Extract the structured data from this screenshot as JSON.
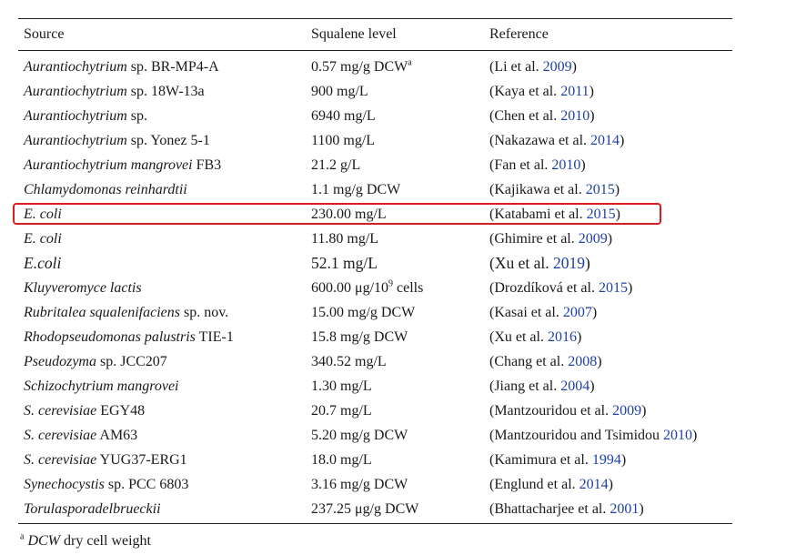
{
  "table": {
    "headers": {
      "source": "Source",
      "squalene": "Squalene level",
      "reference": "Reference"
    },
    "rows": [
      {
        "species": "Aurantiochytrium",
        "strain": " sp. BR-MP4-A",
        "level": "0.57 mg/g DCW",
        "level_sup": "a",
        "ref_text": "(Li et al. ",
        "ref_year": "2009",
        "ref_close": ")"
      },
      {
        "species": "Aurantiochytrium",
        "strain": " sp. 18W-13a",
        "level": "900 mg/L",
        "level_sup": "",
        "ref_text": "(Kaya et al. ",
        "ref_year": "2011",
        "ref_close": ")"
      },
      {
        "species": "Aurantiochytrium",
        "strain": " sp.",
        "level": "6940 mg/L",
        "level_sup": "",
        "ref_text": "(Chen et al. ",
        "ref_year": "2010",
        "ref_close": ")"
      },
      {
        "species": "Aurantiochytrium",
        "strain": " sp. Yonez 5-1",
        "level": "1100 mg/L",
        "level_sup": "",
        "ref_text": "(Nakazawa et al. ",
        "ref_year": "2014",
        "ref_close": ")"
      },
      {
        "species": "Aurantiochytrium mangrovei",
        "strain": " FB3",
        "level": "21.2 g/L",
        "level_sup": "",
        "ref_text": "(Fan et al. ",
        "ref_year": "2010",
        "ref_close": ")"
      },
      {
        "species": "Chlamydomonas reinhardtii",
        "strain": "",
        "level": "1.1 mg/g DCW",
        "level_sup": "",
        "ref_text": "(Kajikawa et al. ",
        "ref_year": "2015",
        "ref_close": ")"
      },
      {
        "species": "E. coli",
        "strain": "",
        "level": "230.00 mg/L",
        "level_sup": "",
        "ref_text": "(Katabami et al. ",
        "ref_year": "2015",
        "ref_close": ")",
        "highlighted": true
      },
      {
        "species": "E. coli",
        "strain": "",
        "level": "11.80 mg/L",
        "level_sup": "",
        "ref_text": "(Ghimire et al. ",
        "ref_year": "2009",
        "ref_close": ")"
      },
      {
        "species": "E.coli",
        "strain": "",
        "level": "52.1 mg/L",
        "level_sup": "",
        "ref_text": "(Xu et al. ",
        "ref_year": "2019",
        "ref_close": ")",
        "big": true
      },
      {
        "species": "Kluyveromyce lactis",
        "strain": "",
        "level": "600.00 μg/10",
        "level_sup": "9",
        "level_after": " cells",
        "ref_text": "(Drozdíková et al. ",
        "ref_year": "2015",
        "ref_close": ")"
      },
      {
        "species": "Rubritalea squalenifaciens",
        "strain": " sp. nov.",
        "level": "15.00 mg/g DCW",
        "level_sup": "",
        "ref_text": "(Kasai et al. ",
        "ref_year": "2007",
        "ref_close": ")"
      },
      {
        "species": "Rhodopseudomonas palustris",
        "strain": " TIE-1",
        "level": "15.8 mg/g DCW",
        "level_sup": "",
        "ref_text": "(Xu et al. ",
        "ref_year": "2016",
        "ref_close": ")"
      },
      {
        "species": "Pseudozyma",
        "strain": " sp. JCC207",
        "level": "340.52 mg/L",
        "level_sup": "",
        "ref_text": "(Chang et al. ",
        "ref_year": "2008",
        "ref_close": ")"
      },
      {
        "species": "Schizochytrium mangrovei",
        "strain": "",
        "level": "1.30 mg/L",
        "level_sup": "",
        "ref_text": "(Jiang et al. ",
        "ref_year": "2004",
        "ref_close": ")"
      },
      {
        "species": "S. cerevisiae",
        "strain": " EGY48",
        "level": "20.7 mg/L",
        "level_sup": "",
        "ref_text": "(Mantzouridou et al. ",
        "ref_year": "2009",
        "ref_close": ")"
      },
      {
        "species": "S. cerevisiae",
        "strain": " AM63",
        "level": "5.20 mg/g DCW",
        "level_sup": "",
        "ref_text": "(Mantzouridou and Tsimidou ",
        "ref_year": "2010",
        "ref_close": ")"
      },
      {
        "species": "S. cerevisiae",
        "strain": " YUG37-ERG1",
        "level": "18.0 mg/L",
        "level_sup": "",
        "ref_text": "(Kamimura et al. ",
        "ref_year": "1994",
        "ref_close": ")"
      },
      {
        "species": "Synechocystis",
        "strain": " sp. PCC 6803",
        "level": "3.16 mg/g DCW",
        "level_sup": "",
        "ref_text": "(Englund et al. ",
        "ref_year": "2014",
        "ref_close": ")"
      },
      {
        "species": "Torulasporadelbrueckii",
        "strain": "",
        "level": "237.25 μg/g DCW",
        "level_sup": "",
        "ref_text": "(Bhattacharjee et al. ",
        "ref_year": "2001",
        "ref_close": ")"
      }
    ]
  },
  "footnote": {
    "marker": "a",
    "abbr": "DCW",
    "text": " dry cell weight"
  },
  "colors": {
    "link": "#1f3fa8",
    "highlight": "#d81e1e",
    "rule": "#222222"
  }
}
